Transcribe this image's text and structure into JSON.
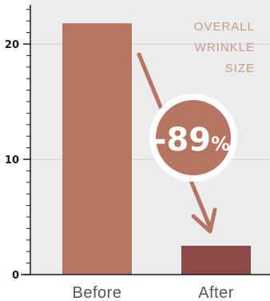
{
  "chart_data": {
    "type": "bar",
    "title": "",
    "xlabel": "",
    "ylabel": "",
    "categories": [
      "Before",
      "After"
    ],
    "values": [
      21.8,
      2.5
    ],
    "ylim": [
      0,
      24
    ],
    "yticks": [
      "0",
      "10",
      "20"
    ],
    "grid": true,
    "annotation": {
      "title_lines": [
        "OVERALL",
        "WRINKLE",
        "SIZE"
      ],
      "change_value": "-89",
      "change_unit": "%"
    }
  },
  "colors": {
    "background": "#ececec",
    "bar_before": "#b67462",
    "bar_after": "#8c4b48",
    "arrow": "#b67462",
    "badge": "#b67462",
    "overlay_text": "#c59a8c",
    "grid": "#cfcfcf"
  }
}
